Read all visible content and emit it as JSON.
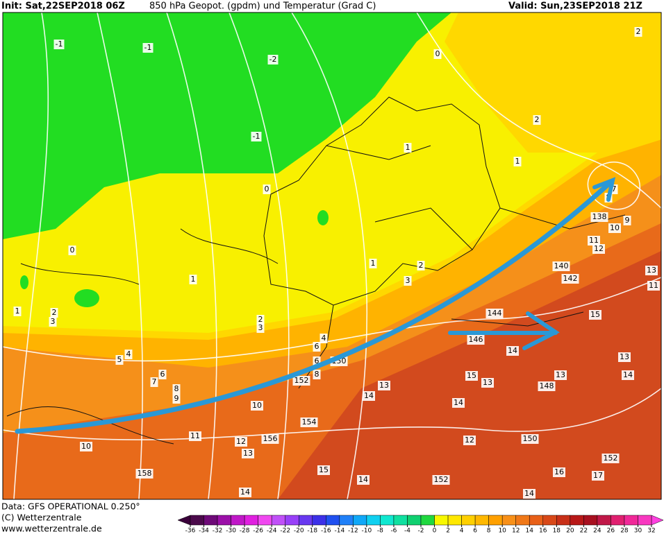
{
  "header": {
    "init": "Init: Sat,22SEP2018 06Z",
    "title": "850 hPa Geopot. (gpdm) und Temperatur (Grad C)",
    "valid": "Valid: Sun,23SEP2018 21Z"
  },
  "footer": {
    "data": "Data: GFS OPERATIONAL 0.250°",
    "copyright": "(C) Wetterzentrale",
    "url": "www.wetterzentrale.de"
  },
  "map": {
    "labels": [
      "-1",
      "-1",
      "-2",
      "0",
      "2",
      "-1",
      "2",
      "1",
      "1",
      "0",
      "0",
      "7",
      "8",
      "138",
      "10",
      "9",
      "11",
      "12",
      "1",
      "2",
      "3",
      "140",
      "142",
      "13",
      "11",
      "1",
      "1",
      "2",
      "3",
      "2",
      "3",
      "144",
      "15",
      "4",
      "146",
      "14",
      "5",
      "4",
      "6",
      "150",
      "6",
      "8",
      "7",
      "6",
      "8",
      "9",
      "152",
      "13",
      "15",
      "13",
      "148",
      "13",
      "13",
      "14",
      "14",
      "10",
      "14",
      "154",
      "11",
      "12",
      "156",
      "12",
      "150",
      "10",
      "13",
      "152",
      "15",
      "16",
      "17",
      "158",
      "14",
      "152",
      "14",
      "14"
    ]
  },
  "colorbar": {
    "ticks": [
      -36,
      -34,
      -32,
      -30,
      -28,
      -26,
      -24,
      -22,
      -20,
      -18,
      -16,
      -14,
      -12,
      -10,
      -8,
      -6,
      -4,
      -2,
      0,
      2,
      4,
      6,
      8,
      10,
      12,
      14,
      16,
      18,
      20,
      22,
      24,
      26,
      28,
      30,
      32
    ],
    "colors": [
      "#4b0a4b",
      "#6e0a78",
      "#9b10a8",
      "#c018c8",
      "#e020e0",
      "#f048f0",
      "#c050f8",
      "#9840f8",
      "#6838f0",
      "#3c30e8",
      "#2050f0",
      "#2080f8",
      "#10a8f8",
      "#10d0f0",
      "#10e8d0",
      "#10e0a0",
      "#10d070",
      "#20d840",
      "#f8f800",
      "#ffe800",
      "#ffd000",
      "#ffb800",
      "#ffa000",
      "#f89018",
      "#f07818",
      "#e86018",
      "#d84818",
      "#c83018",
      "#b81818",
      "#a81020",
      "#c01848",
      "#e02070",
      "#f02898",
      "#f838c0"
    ],
    "arrow_colors": [
      "#3a003a",
      "#ff40e0"
    ]
  }
}
